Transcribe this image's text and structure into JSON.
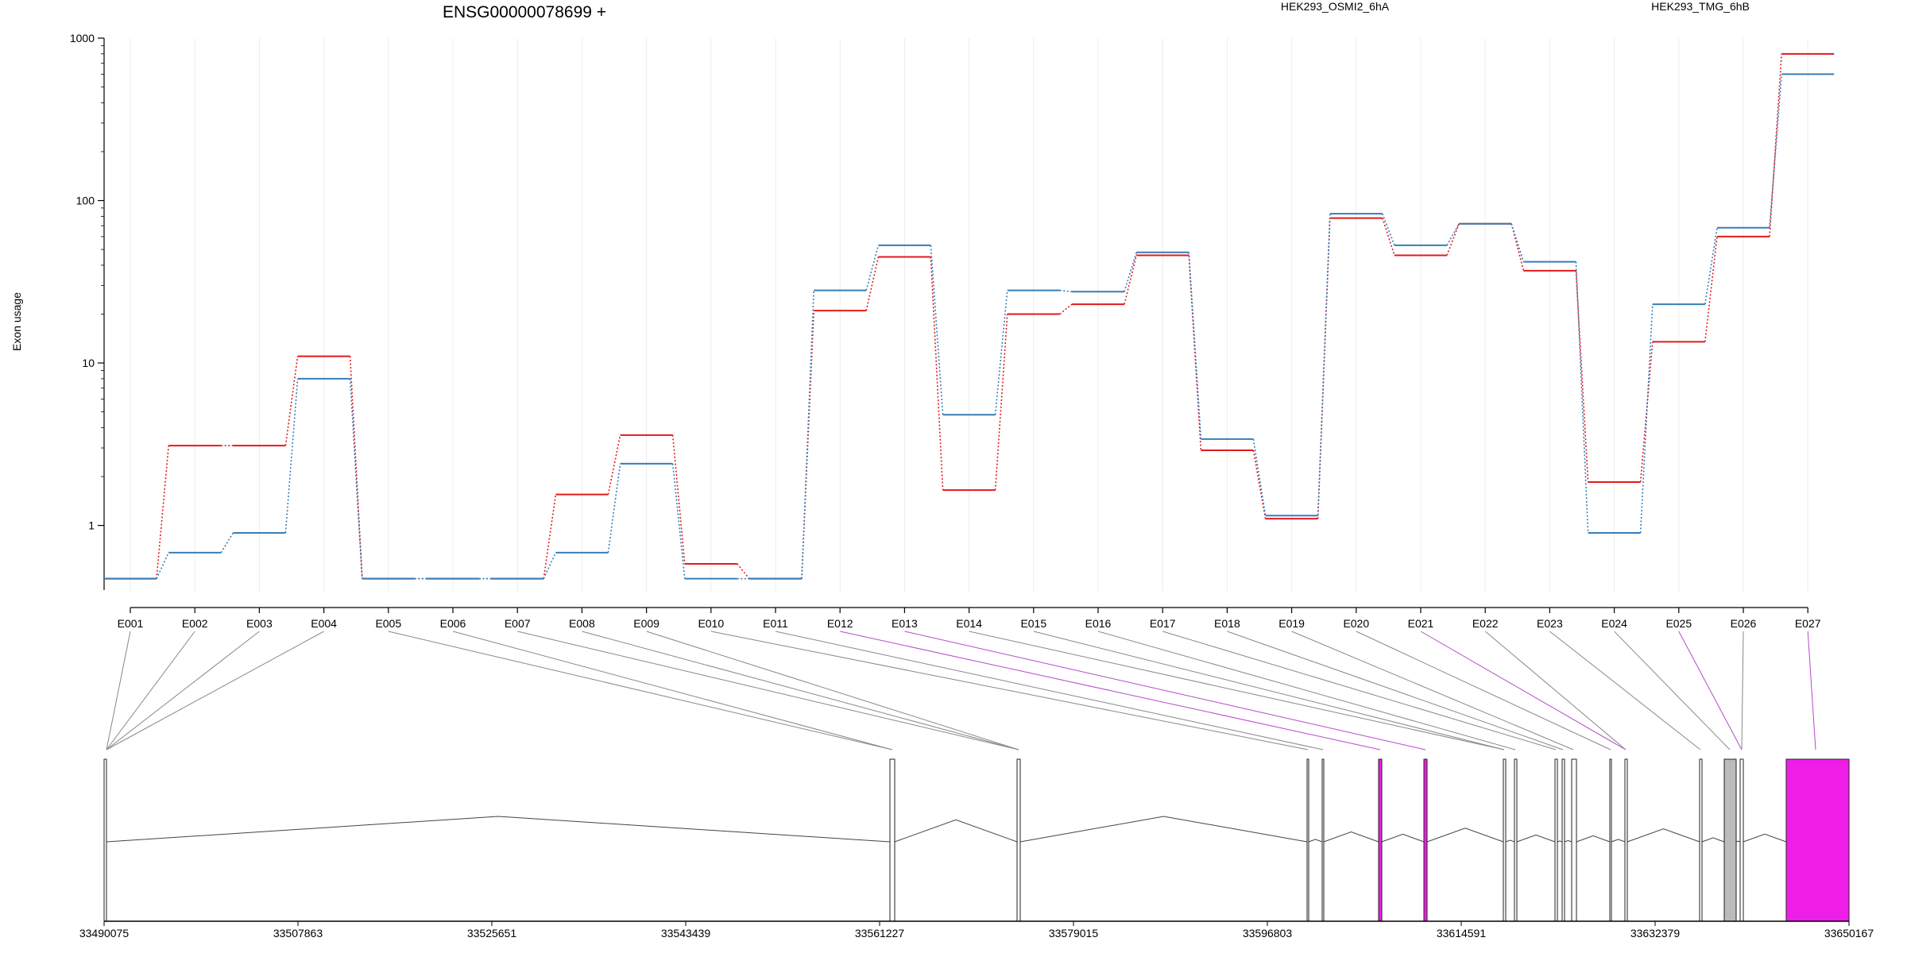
{
  "chart_data": {
    "type": "line",
    "title": "ENSG00000078699 +",
    "ylabel": "Exon usage",
    "yscale": "log",
    "ylim": [
      0.4,
      1000
    ],
    "yticks": [
      "1",
      "10",
      "100",
      "1000"
    ],
    "legend_placement": "top",
    "categories": [
      "E001",
      "E002",
      "E003",
      "E004",
      "E005",
      "E006",
      "E007",
      "E008",
      "E009",
      "E010",
      "E011",
      "E012",
      "E013",
      "E014",
      "E015",
      "E016",
      "E017",
      "E018",
      "E019",
      "E020",
      "E021",
      "E022",
      "E023",
      "E024",
      "E025",
      "E026",
      "E027"
    ],
    "series": [
      {
        "name": "HEK293_OSMI2_6hA",
        "color": "#e31a1c",
        "values": [
          0.47,
          3.1,
          3.1,
          11,
          0.47,
          0.47,
          0.47,
          1.55,
          3.6,
          0.58,
          0.47,
          21,
          45,
          1.65,
          20,
          23,
          46,
          2.9,
          1.1,
          78,
          46,
          72,
          37,
          1.85,
          13.5,
          60,
          800
        ]
      },
      {
        "name": "HEK293_TMG_6hB",
        "color": "#377eb8",
        "values": [
          0.47,
          0.68,
          0.9,
          8,
          0.47,
          0.47,
          0.47,
          0.68,
          2.4,
          0.47,
          0.47,
          28,
          53,
          4.8,
          28,
          27.5,
          48,
          3.4,
          1.15,
          83,
          53,
          72,
          42,
          0.9,
          23,
          68,
          600
        ]
      }
    ],
    "gene_model": {
      "position_labels": [
        "33490075",
        "33507863",
        "33525651",
        "33543439",
        "33561227",
        "33579015",
        "33596803",
        "33614591",
        "33632379",
        "33650167"
      ],
      "exon_colors": {
        "normal": "#ffffff",
        "highlight": "#ee1ee6",
        "grey": "#bbbbbb"
      }
    }
  }
}
